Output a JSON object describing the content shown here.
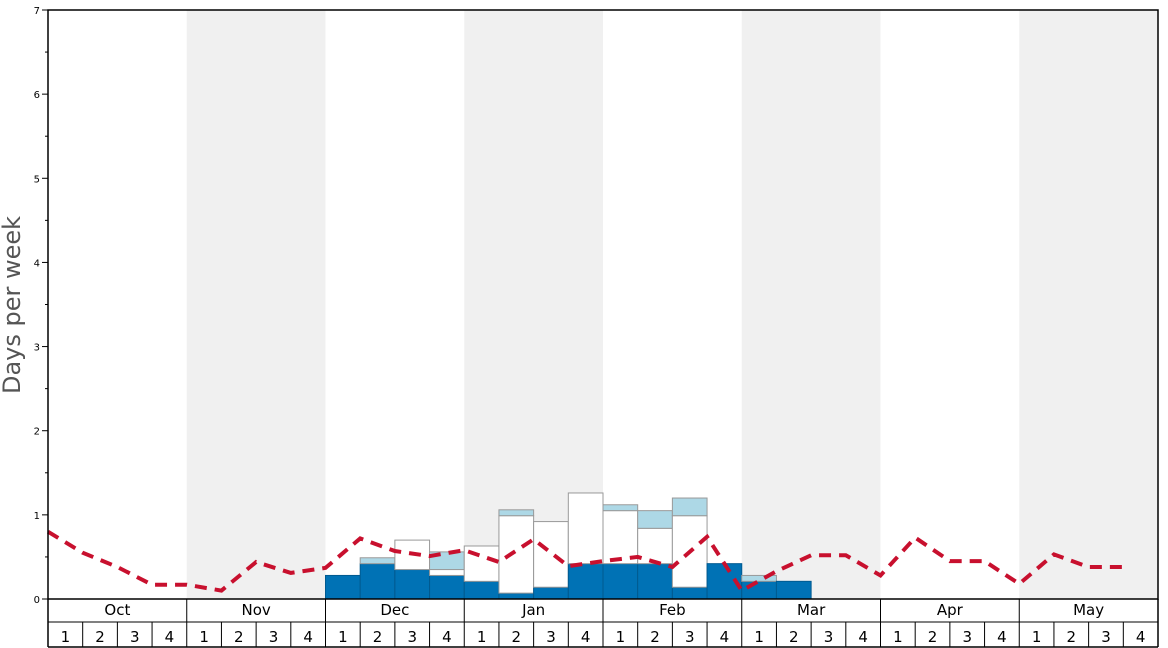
{
  "chart_data": {
    "type": "bar",
    "ylabel": "Days per week",
    "ylim": [
      0,
      7
    ],
    "yticks": [
      "0",
      "1",
      "2",
      "3",
      "4",
      "5",
      "6",
      "7"
    ],
    "months": [
      "Oct",
      "Nov",
      "Dec",
      "Jan",
      "Feb",
      "Mar",
      "Apr",
      "May"
    ],
    "week_labels": [
      "1",
      "2",
      "3",
      "4"
    ],
    "stacked": true,
    "series": [
      {
        "color": "#0072b5",
        "values": [
          0,
          0,
          0,
          0,
          0,
          0,
          0,
          0,
          0.28,
          0.42,
          0.35,
          0.28,
          0.21,
          0.07,
          0.14,
          0.42,
          0.42,
          0.42,
          0.14,
          0.42,
          0.21,
          0.21,
          0,
          0,
          0,
          0,
          0,
          0,
          0,
          0,
          0,
          0
        ]
      },
      {
        "color": "#ffffff",
        "values": [
          0,
          0,
          0,
          0,
          0,
          0,
          0,
          0,
          0,
          0,
          0.35,
          0.07,
          0.42,
          0.92,
          0.78,
          0.84,
          0.63,
          0.42,
          0.85,
          0,
          0,
          0,
          0,
          0,
          0,
          0,
          0,
          0,
          0,
          0,
          0,
          0
        ]
      },
      {
        "color": "#add8e6",
        "values": [
          0,
          0,
          0,
          0,
          0,
          0,
          0,
          0,
          0,
          0.07,
          0,
          0.21,
          0,
          0.07,
          0,
          0,
          0.07,
          0.21,
          0.21,
          0,
          0.07,
          0,
          0,
          0,
          0,
          0,
          0,
          0,
          0,
          0,
          0,
          0
        ]
      }
    ],
    "average_line": {
      "color": "#c8102e",
      "style": "dashed",
      "values": [
        0.8,
        0.55,
        0.38,
        0.17,
        0.17,
        0.1,
        0.44,
        0.31,
        0.37,
        0.72,
        0.57,
        0.51,
        0.58,
        0.44,
        0.71,
        0.39,
        0.45,
        0.5,
        0.38,
        0.74,
        0.1,
        0.33,
        0.52,
        0.52,
        0.28,
        0.73,
        0.45,
        0.45,
        0.18,
        0.53,
        0.38,
        0.38
      ]
    },
    "shaded_months": [
      1,
      3,
      5,
      7
    ],
    "grid": false
  }
}
